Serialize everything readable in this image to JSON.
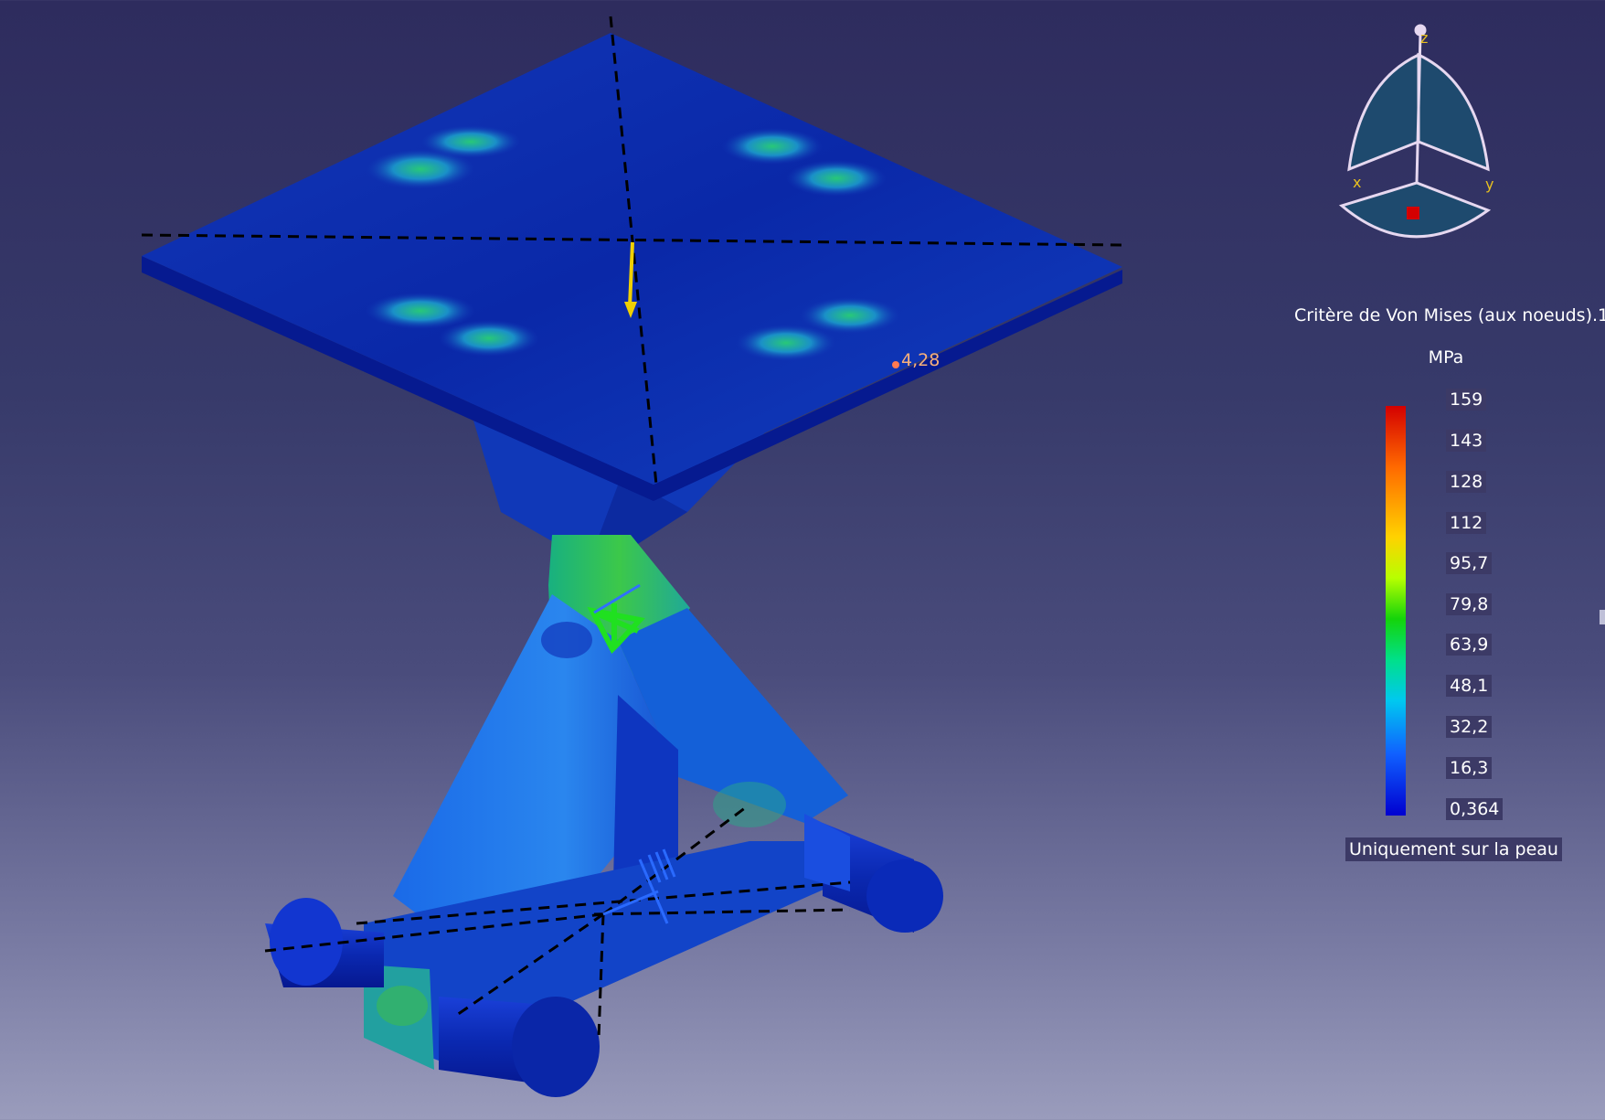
{
  "viewer": {
    "probe": {
      "value": "4,28"
    },
    "compass": {
      "axis_x": "x",
      "axis_y": "y",
      "axis_z": "z"
    }
  },
  "legend": {
    "title": "Critère de Von Mises (aux noeuds).1",
    "unit": "MPa",
    "ticks": [
      "159",
      "143",
      "128",
      "112",
      "95,7",
      "79,8",
      "63,9",
      "48,1",
      "32,2",
      "16,3",
      "0,364"
    ],
    "note": "Uniquement sur la peau"
  }
}
